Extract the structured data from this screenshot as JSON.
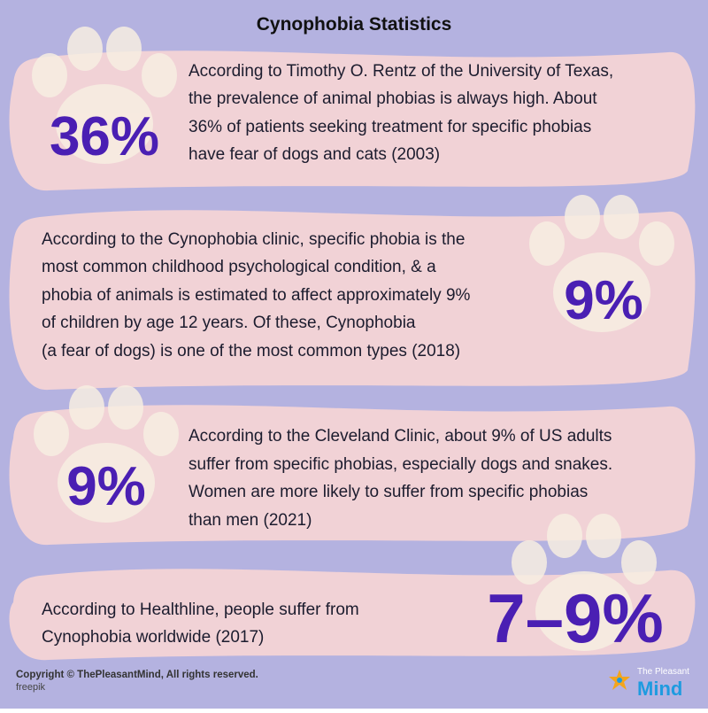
{
  "title": "Cynophobia Statistics",
  "cards": [
    {
      "stat": "36%",
      "lines": [
        "According to Timothy O. Rentz of the University of Texas,",
        "the prevalence of animal phobias is always high. About",
        "36% of patients seeking treatment for specific phobias",
        "have fear of dogs and cats (2003)"
      ]
    },
    {
      "stat": "9%",
      "lines": [
        "According to the Cynophobia clinic, specific phobia is the",
        "most common childhood psychological condition, & a",
        "phobia of animals is estimated to affect approximately 9%",
        "of children by age 12 years. Of these, Cynophobia",
        "(a fear of dogs) is one of the most common types (2018)"
      ]
    },
    {
      "stat": "9%",
      "lines": [
        "According to the Cleveland Clinic, about 9% of US adults",
        "suffer from specific phobias, especially dogs and snakes.",
        "Women are more likely to suffer from specific phobias",
        "than men (2021)"
      ]
    },
    {
      "stat": "7–9%",
      "lines": [
        "According to Healthline, people suffer from",
        "Cynophobia worldwide (2017)"
      ]
    }
  ],
  "footer": {
    "copyright": "Copyright © ThePleasantMind, All rights reserved.",
    "credit": "freepik"
  },
  "logo": {
    "top": "The Pleasant",
    "bottom": "Mind"
  }
}
